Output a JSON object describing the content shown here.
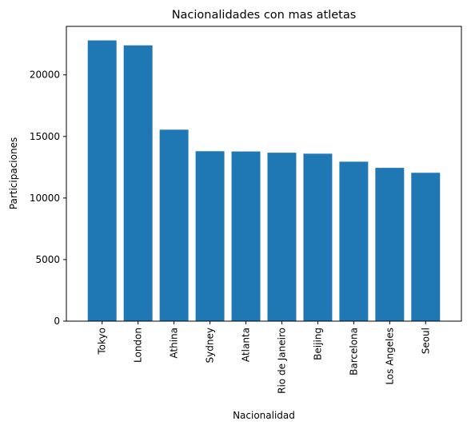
{
  "chart_data": {
    "type": "bar",
    "title": "Nacionalidades con mas atletas",
    "xlabel": "Nacionalidad",
    "ylabel": "Participaciones",
    "categories": [
      "Tokyo",
      "London",
      "Athina",
      "Sydney",
      "Atlanta",
      "Rio de Janeiro",
      "Beijing",
      "Barcelona",
      "Los Angeles",
      "Seoul"
    ],
    "values": [
      22800,
      22400,
      15550,
      13800,
      13780,
      13680,
      13600,
      12950,
      12450,
      12050
    ],
    "ylim": [
      0,
      23940
    ],
    "yticks": [
      0,
      5000,
      10000,
      15000,
      20000
    ],
    "ytick_labels": [
      "0",
      "5000",
      "10000",
      "15000",
      "20000"
    ],
    "bar_color": "#1f77b4",
    "grid": false,
    "legend": "none"
  }
}
